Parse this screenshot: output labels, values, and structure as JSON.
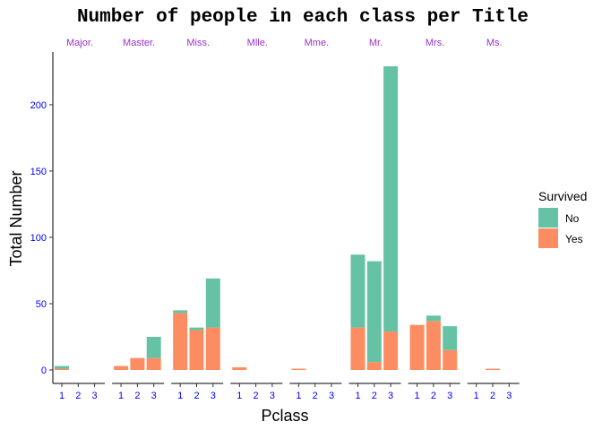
{
  "chart_data": {
    "type": "bar",
    "title": "Number of people in each class per Title",
    "xlabel": "Pclass",
    "ylabel": "Total Number",
    "ylim": [
      -10,
      236
    ],
    "yticks": [
      0,
      50,
      100,
      150,
      200
    ],
    "categories": [
      "1",
      "2",
      "3"
    ],
    "facets": [
      "Major.",
      "Master.",
      "Miss.",
      "Mlle.",
      "Mme.",
      "Mr.",
      "Mrs.",
      "Ms."
    ],
    "legend": {
      "title": "Survived",
      "position": "right"
    },
    "colors": {
      "No": "#66c2a5",
      "Yes": "#fc8d62",
      "facet_label": "#9932cc",
      "tick_label": "#0000ff"
    },
    "series": [
      {
        "name": "No",
        "values": [
          [
            2,
            0,
            0
          ],
          [
            0,
            0,
            16
          ],
          [
            2,
            2,
            37
          ],
          [
            0,
            0,
            0
          ],
          [
            0,
            0,
            0
          ],
          [
            55,
            76,
            200
          ],
          [
            0,
            4,
            18
          ],
          [
            0,
            0,
            0
          ]
        ]
      },
      {
        "name": "Yes",
        "values": [
          [
            1,
            0,
            0
          ],
          [
            3,
            9,
            9
          ],
          [
            43,
            30,
            32
          ],
          [
            2,
            0,
            0
          ],
          [
            1,
            0,
            0
          ],
          [
            32,
            6,
            29
          ],
          [
            34,
            37,
            15
          ],
          [
            0,
            1,
            0
          ]
        ]
      }
    ]
  }
}
